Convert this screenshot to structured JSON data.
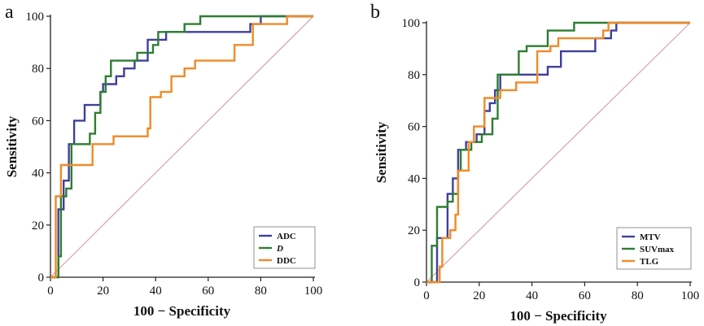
{
  "chart_data": [
    {
      "type": "line",
      "panel_label": "a",
      "xlabel": "100 − Specificity",
      "ylabel": "Sensitivity",
      "xlim": [
        0,
        100
      ],
      "ylim": [
        0,
        100
      ],
      "xticks": [
        0,
        20,
        40,
        60,
        80,
        100
      ],
      "yticks": [
        0,
        20,
        40,
        60,
        80,
        100
      ],
      "tick_labels_x": [
        "0",
        "20",
        "40",
        "60",
        "80",
        "100"
      ],
      "tick_labels_y": [
        "0",
        "20",
        "40",
        "60",
        "80",
        "100"
      ],
      "grid": false,
      "legend_position": "bottom-right",
      "reference_line": {
        "from": [
          0,
          0
        ],
        "to": [
          100,
          100
        ],
        "color": "#d9a0a6"
      },
      "series": [
        {
          "name": "ADC",
          "italic": false,
          "color": "#3f3f9e",
          "points": [
            [
              0,
              0
            ],
            [
              3,
              0
            ],
            [
              3,
              26
            ],
            [
              5,
              26
            ],
            [
              5,
              37
            ],
            [
              7,
              37
            ],
            [
              7,
              51
            ],
            [
              9,
              51
            ],
            [
              9,
              60
            ],
            [
              13,
              60
            ],
            [
              13,
              66
            ],
            [
              19,
              66
            ],
            [
              19,
              71
            ],
            [
              20,
              71
            ],
            [
              20,
              74
            ],
            [
              25,
              74
            ],
            [
              25,
              77
            ],
            [
              28,
              77
            ],
            [
              28,
              80
            ],
            [
              32,
              80
            ],
            [
              32,
              83
            ],
            [
              37,
              83
            ],
            [
              37,
              91
            ],
            [
              44,
              91
            ],
            [
              44,
              94
            ],
            [
              76,
              94
            ],
            [
              76,
              97
            ],
            [
              80,
              97
            ],
            [
              80,
              100
            ],
            [
              100,
              100
            ]
          ]
        },
        {
          "name": "D",
          "italic": true,
          "color": "#2e7d32",
          "points": [
            [
              0,
              0
            ],
            [
              3,
              0
            ],
            [
              3,
              8
            ],
            [
              4,
              8
            ],
            [
              4,
              31
            ],
            [
              6,
              31
            ],
            [
              6,
              34
            ],
            [
              8,
              34
            ],
            [
              8,
              51
            ],
            [
              15,
              51
            ],
            [
              15,
              55
            ],
            [
              17,
              55
            ],
            [
              17,
              63
            ],
            [
              19,
              63
            ],
            [
              19,
              71
            ],
            [
              21,
              71
            ],
            [
              21,
              77
            ],
            [
              23,
              77
            ],
            [
              23,
              83
            ],
            [
              33,
              83
            ],
            [
              33,
              86
            ],
            [
              39,
              86
            ],
            [
              39,
              89
            ],
            [
              41,
              89
            ],
            [
              41,
              94
            ],
            [
              51,
              94
            ],
            [
              51,
              97
            ],
            [
              57,
              97
            ],
            [
              57,
              100
            ],
            [
              100,
              100
            ]
          ]
        },
        {
          "name": "DDC",
          "italic": false,
          "color": "#f08a28",
          "points": [
            [
              0,
              0
            ],
            [
              2,
              0
            ],
            [
              2,
              31
            ],
            [
              4,
              31
            ],
            [
              4,
              43
            ],
            [
              16,
              43
            ],
            [
              16,
              51
            ],
            [
              24,
              51
            ],
            [
              24,
              54
            ],
            [
              37,
              54
            ],
            [
              37,
              57
            ],
            [
              38,
              57
            ],
            [
              38,
              69
            ],
            [
              42,
              69
            ],
            [
              42,
              71
            ],
            [
              46,
              71
            ],
            [
              46,
              77
            ],
            [
              51,
              77
            ],
            [
              51,
              80
            ],
            [
              55,
              80
            ],
            [
              55,
              83
            ],
            [
              70,
              83
            ],
            [
              70,
              89
            ],
            [
              77,
              89
            ],
            [
              77,
              97
            ],
            [
              90,
              97
            ],
            [
              90,
              100
            ],
            [
              100,
              100
            ]
          ]
        }
      ]
    },
    {
      "type": "line",
      "panel_label": "b",
      "xlabel": "100 − Specificity",
      "ylabel": "Sensitivity",
      "xlim": [
        0,
        100
      ],
      "ylim": [
        0,
        100
      ],
      "xticks": [
        0,
        20,
        40,
        60,
        80,
        100
      ],
      "yticks": [
        0,
        20,
        40,
        60,
        80,
        100
      ],
      "tick_labels_x": [
        "0",
        "20",
        "40",
        "60",
        "80",
        "100"
      ],
      "tick_labels_y": [
        "0",
        "20",
        "40",
        "60",
        "80",
        "100"
      ],
      "grid": false,
      "legend_position": "bottom-right",
      "reference_line": {
        "from": [
          0,
          0
        ],
        "to": [
          100,
          100
        ],
        "color": "#d9a0a6"
      },
      "series": [
        {
          "name": "MTV",
          "italic": false,
          "color": "#3f3f9e",
          "points": [
            [
              0,
              0
            ],
            [
              4,
              0
            ],
            [
              4,
              17
            ],
            [
              8,
              17
            ],
            [
              8,
              34
            ],
            [
              10,
              34
            ],
            [
              10,
              40
            ],
            [
              12,
              40
            ],
            [
              12,
              51
            ],
            [
              15,
              51
            ],
            [
              15,
              54
            ],
            [
              19,
              54
            ],
            [
              19,
              57
            ],
            [
              22,
              57
            ],
            [
              22,
              66
            ],
            [
              24,
              66
            ],
            [
              24,
              69
            ],
            [
              26,
              69
            ],
            [
              26,
              74
            ],
            [
              28,
              74
            ],
            [
              28,
              80
            ],
            [
              46,
              80
            ],
            [
              46,
              83
            ],
            [
              51,
              83
            ],
            [
              51,
              89
            ],
            [
              64,
              89
            ],
            [
              64,
              94
            ],
            [
              70,
              94
            ],
            [
              70,
              97
            ],
            [
              72,
              97
            ],
            [
              72,
              100
            ],
            [
              100,
              100
            ]
          ]
        },
        {
          "name": "SUVmax",
          "italic": false,
          "color": "#2e7d32",
          "points": [
            [
              0,
              0
            ],
            [
              2,
              0
            ],
            [
              2,
              14
            ],
            [
              4,
              14
            ],
            [
              4,
              29
            ],
            [
              8,
              29
            ],
            [
              8,
              31
            ],
            [
              10,
              31
            ],
            [
              10,
              34
            ],
            [
              12,
              34
            ],
            [
              12,
              43
            ],
            [
              13,
              43
            ],
            [
              13,
              51
            ],
            [
              17,
              51
            ],
            [
              17,
              54
            ],
            [
              21,
              54
            ],
            [
              21,
              57
            ],
            [
              25,
              57
            ],
            [
              25,
              63
            ],
            [
              27,
              63
            ],
            [
              27,
              80
            ],
            [
              35,
              80
            ],
            [
              35,
              89
            ],
            [
              38,
              89
            ],
            [
              38,
              91
            ],
            [
              46,
              91
            ],
            [
              46,
              97
            ],
            [
              56,
              97
            ],
            [
              56,
              100
            ],
            [
              100,
              100
            ]
          ]
        },
        {
          "name": "TLG",
          "italic": false,
          "color": "#f08a28",
          "points": [
            [
              0,
              0
            ],
            [
              5,
              0
            ],
            [
              5,
              6
            ],
            [
              6,
              6
            ],
            [
              6,
              17
            ],
            [
              9,
              17
            ],
            [
              9,
              20
            ],
            [
              11,
              20
            ],
            [
              11,
              26
            ],
            [
              12,
              26
            ],
            [
              12,
              43
            ],
            [
              16,
              43
            ],
            [
              16,
              54
            ],
            [
              18,
              54
            ],
            [
              18,
              60
            ],
            [
              22,
              60
            ],
            [
              22,
              71
            ],
            [
              28,
              71
            ],
            [
              28,
              74
            ],
            [
              34,
              74
            ],
            [
              34,
              77
            ],
            [
              42,
              77
            ],
            [
              42,
              89
            ],
            [
              47,
              89
            ],
            [
              47,
              91
            ],
            [
              50,
              91
            ],
            [
              50,
              94
            ],
            [
              67,
              94
            ],
            [
              67,
              97
            ],
            [
              69,
              97
            ],
            [
              69,
              100
            ],
            [
              100,
              100
            ]
          ]
        }
      ]
    }
  ]
}
